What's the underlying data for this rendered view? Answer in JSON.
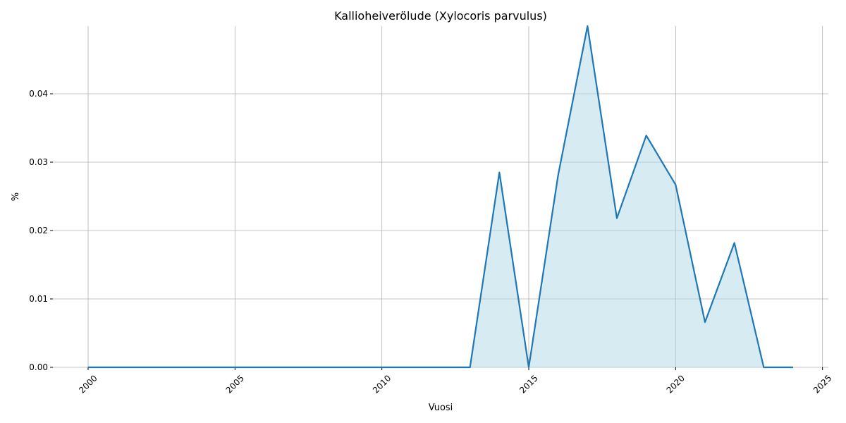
{
  "chart_data": {
    "type": "area",
    "title": "Kallioheiverölude (Xylocoris parvulus)",
    "x_label": "Vuosi",
    "y_label": "%",
    "x": [
      2000,
      2001,
      2002,
      2003,
      2004,
      2005,
      2006,
      2007,
      2008,
      2009,
      2010,
      2011,
      2012,
      2013,
      2014,
      2015,
      2016,
      2017,
      2018,
      2019,
      2020,
      2021,
      2022,
      2023,
      2024
    ],
    "values": [
      0,
      0,
      0,
      0,
      0,
      0,
      0,
      0,
      0,
      0,
      0,
      0,
      0,
      0,
      0.0285,
      0,
      0.0281,
      0.0499,
      0.0218,
      0.0339,
      0.0267,
      0.0066,
      0.0182,
      0,
      0
    ],
    "color": "#1f77b4",
    "fill_color": "#add8e6",
    "xlim": [
      1998.8,
      2025.2
    ],
    "xticks": [
      2000,
      2005,
      2010,
      2015,
      2020,
      2025
    ],
    "ylim": [
      0,
      0.0499
    ],
    "yticks": [
      {
        "value": 0,
        "label": "0.00"
      },
      0.01,
      0.02,
      0.03,
      0.04
    ],
    "grid": true
  }
}
